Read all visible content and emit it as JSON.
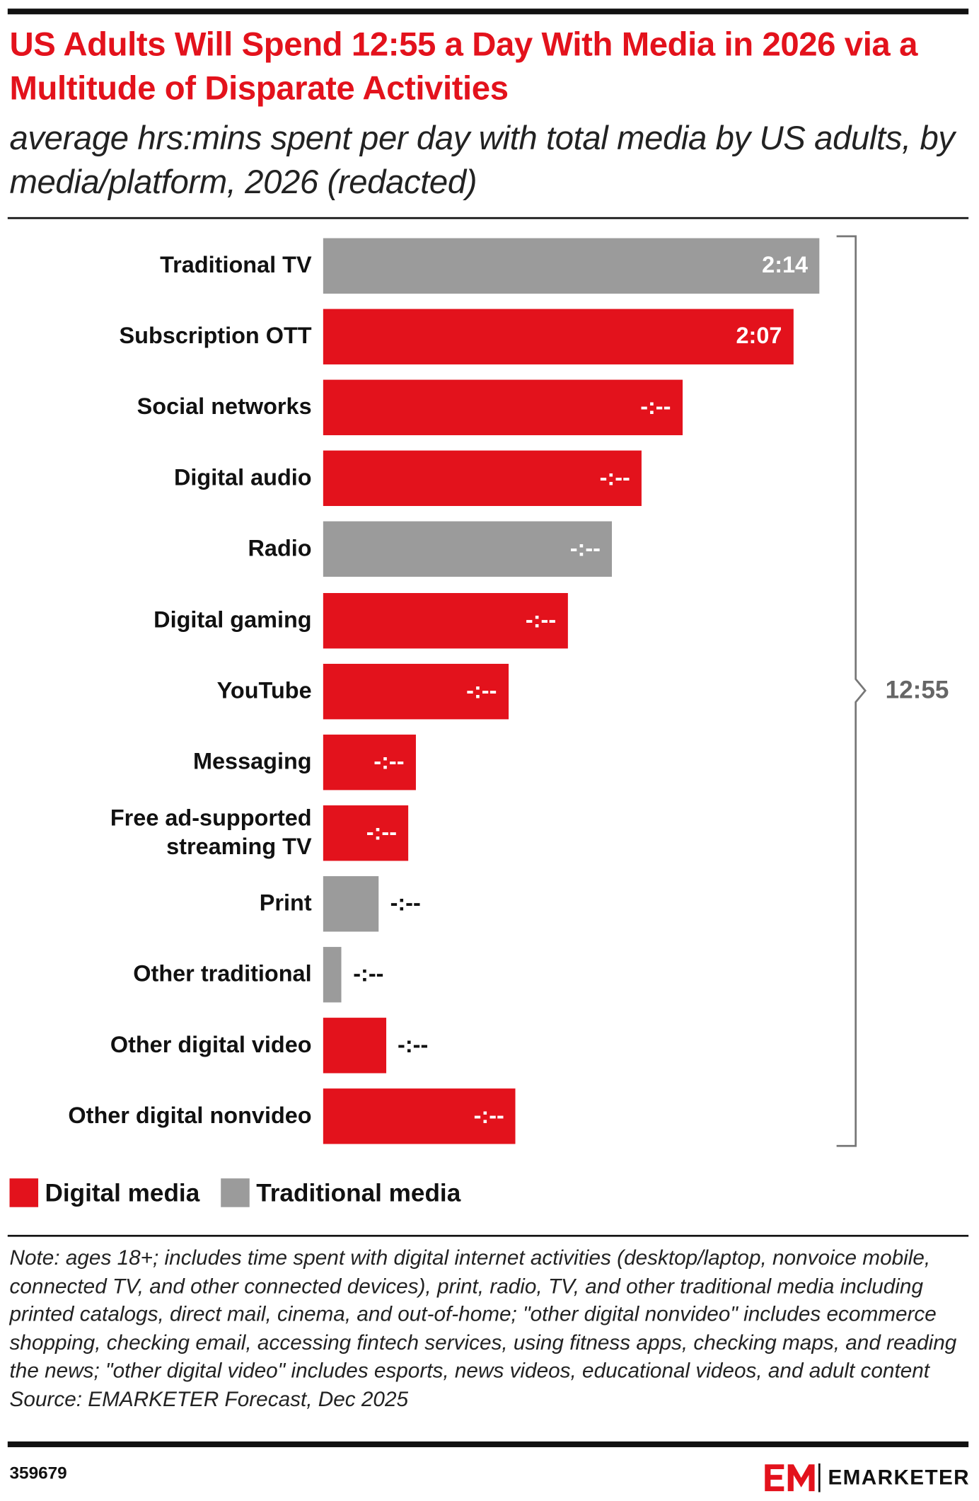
{
  "chart_data": {
    "type": "bar",
    "orientation": "horizontal",
    "title": "US Adults Will Spend 12:55 a Day With Media in 2026 via a Multitude of Disparate Activities",
    "subtitle": "average hrs:mins spent per day with total media by US adults, by media/platform, 2026 (redacted)",
    "categories": [
      "Traditional TV",
      "Subscription OTT",
      "Social networks",
      "Digital audio",
      "Radio",
      "Digital gaming",
      "YouTube",
      "Messaging",
      "Free ad-supported streaming TV",
      "Print",
      "Other traditional",
      "Other digital video",
      "Other digital nonvideo"
    ],
    "series": [
      {
        "name": "Digital media",
        "color": "#e3121c",
        "values": [
          null,
          127,
          97,
          86,
          null,
          66,
          50,
          25,
          23,
          null,
          null,
          17,
          52
        ],
        "value_labels": [
          null,
          "2:07",
          "-:--",
          "-:--",
          null,
          "-:--",
          "-:--",
          "-:--",
          "-:--",
          null,
          null,
          "-:--",
          "-:--"
        ]
      },
      {
        "name": "Traditional media",
        "color": "#9b9b9b",
        "values": [
          134,
          null,
          null,
          null,
          78,
          null,
          null,
          null,
          null,
          15,
          5,
          null,
          null
        ],
        "value_labels": [
          "2:14",
          null,
          null,
          null,
          "-:--",
          null,
          null,
          null,
          null,
          "-:--",
          "-:--",
          null,
          null
        ]
      }
    ],
    "total_label": "12:55",
    "note": "Note: ages 18+; includes time spent with digital internet activities (desktop/laptop, nonvoice mobile, connected TV, and other connected devices), print, radio, TV, and other traditional media including printed catalogs, direct mail, cinema, and out-of-home; \"other digital nonvideo\" includes ecommerce shopping, checking email, accessing fintech services, using fitness apps, checking maps, and reading the news; \"other digital video\" includes esports, news videos, educational videos, and adult content",
    "source": "Source: EMARKETER Forecast, Dec 2025",
    "chart_id": "359679",
    "brand": "EMARKETER"
  }
}
